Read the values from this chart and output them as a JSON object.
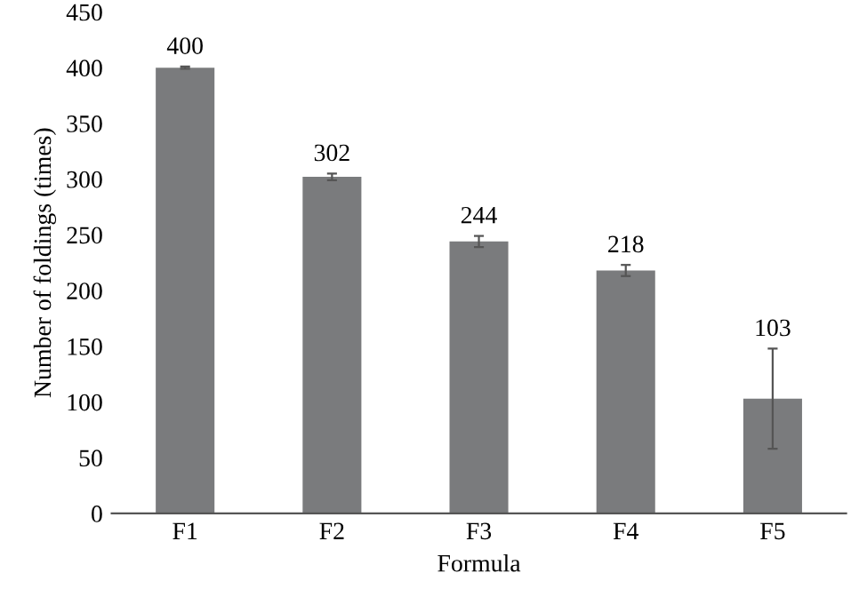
{
  "chart_data": {
    "type": "bar",
    "categories": [
      "F1",
      "F2",
      "F3",
      "F4",
      "F5"
    ],
    "values": [
      400,
      302,
      244,
      218,
      103
    ],
    "errors": [
      1,
      3,
      5,
      5,
      45
    ],
    "color": "#7a7b7d",
    "xlabel": "Formula",
    "ylabel": "Number of foldings (times)",
    "ylim": [
      0,
      450
    ],
    "yticks": [
      0,
      50,
      100,
      150,
      200,
      250,
      300,
      350,
      400,
      450
    ],
    "data_labels": true,
    "grid": false,
    "legend": false
  }
}
